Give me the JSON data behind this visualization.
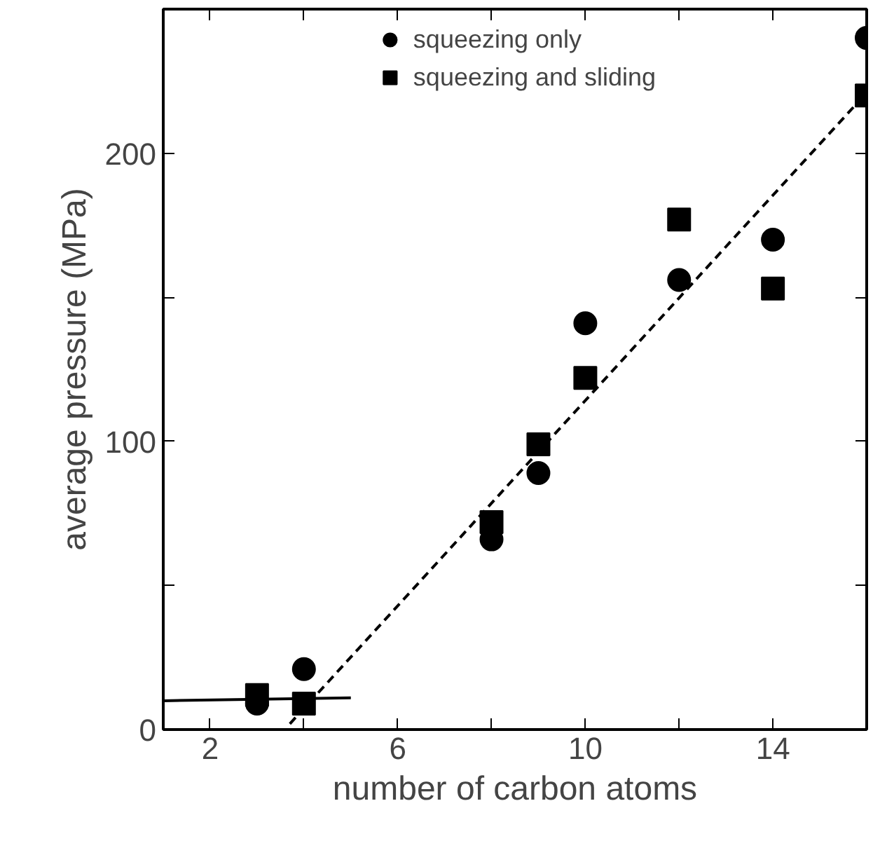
{
  "chart_data": {
    "type": "scatter",
    "xlabel": "number of carbon atoms",
    "ylabel": "average pressure (MPa)",
    "xlim": [
      1,
      16
    ],
    "ylim": [
      0,
      250
    ],
    "xticks": [
      2,
      {
        "value": 4,
        "label": null
      },
      6,
      {
        "value": 8,
        "label": null
      },
      10,
      {
        "value": 12,
        "label": null
      },
      14,
      {
        "value": 16,
        "label": null
      }
    ],
    "yticks": [
      0,
      {
        "value": 50,
        "label": null
      },
      100,
      {
        "value": 150,
        "label": null
      },
      200
    ],
    "grid": false,
    "legend": "top",
    "series": [
      {
        "name": "squeezing only",
        "color": "#000000",
        "marker": "circle",
        "x": [
          3,
          4,
          8,
          9,
          10,
          12,
          14,
          16
        ],
        "values": [
          9,
          21,
          66,
          89,
          141,
          156,
          170,
          240
        ]
      },
      {
        "name": "squeezing and sliding",
        "color": "#000000",
        "marker": "square",
        "x": [
          3,
          4,
          8,
          9,
          10,
          12,
          14,
          16
        ],
        "values": [
          12,
          9,
          72,
          99,
          122,
          177,
          153,
          220
        ]
      },
      {
        "type": "line",
        "color": "#000000",
        "line_style": "solid",
        "x": [
          1,
          5
        ],
        "values": [
          10,
          11
        ]
      },
      {
        "type": "line",
        "color": "#000000",
        "line_style": "dashed",
        "x": [
          3.7,
          16
        ],
        "values": [
          2,
          221
        ]
      }
    ]
  }
}
